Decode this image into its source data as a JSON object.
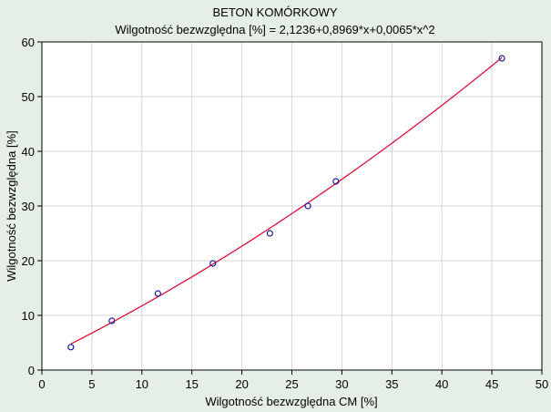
{
  "chart_data": {
    "type": "scatter",
    "title": "BETON KOMÓRKOWY",
    "subtitle": "Wilgotność bezwzględna [%] = 2,1236+0,8969*x+0,0065*x^2",
    "xlabel": "Wilgotność bezwzględna CM [%]",
    "ylabel": "Wilgotność bezwzględna [%]",
    "xlim": [
      0,
      50
    ],
    "ylim": [
      0,
      60
    ],
    "xticks": [
      0,
      5,
      10,
      15,
      20,
      25,
      30,
      35,
      40,
      45,
      50
    ],
    "yticks": [
      0,
      10,
      20,
      30,
      40,
      50,
      60
    ],
    "grid": true,
    "points": [
      {
        "x": 2.9,
        "y": 4.2
      },
      {
        "x": 7.0,
        "y": 9.0
      },
      {
        "x": 11.6,
        "y": 14.0
      },
      {
        "x": 17.1,
        "y": 19.5
      },
      {
        "x": 22.8,
        "y": 25.0
      },
      {
        "x": 26.6,
        "y": 30.0
      },
      {
        "x": 29.4,
        "y": 34.5
      },
      {
        "x": 46.0,
        "y": 57.0
      }
    ],
    "fit": {
      "type": "polynomial",
      "coefficients": [
        2.1236,
        0.8969,
        0.0065
      ],
      "x_range": [
        2.9,
        46.0
      ]
    },
    "colors": {
      "background": "#e6efe6",
      "plot_background": "#ffffff",
      "grid": "#d6d6d6",
      "fit_line": "#e0103a",
      "marker": "#1a1aa8",
      "axis": "#000000"
    }
  }
}
